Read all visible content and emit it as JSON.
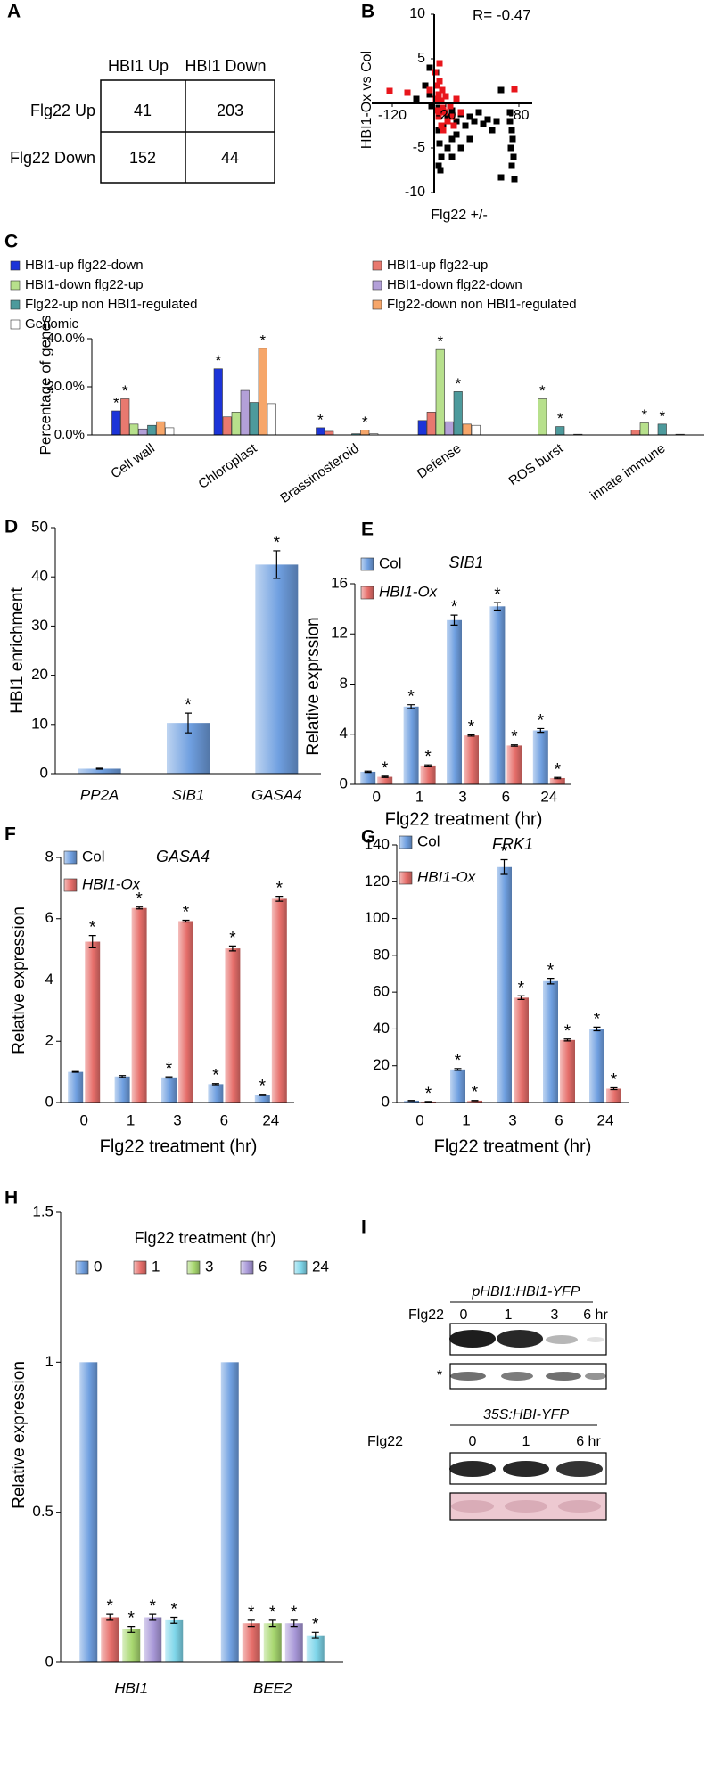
{
  "chart_data": [
    {
      "type": "table",
      "panel_label": "A",
      "columns": [
        "HBI1 Up",
        "HBI1 Down"
      ],
      "rows": [
        "Flg22 Up",
        "Flg22 Down"
      ],
      "cells": [
        [
          41,
          203
        ],
        [
          152,
          44
        ]
      ]
    },
    {
      "type": "scatter",
      "panel_label": "B",
      "annotation": "R= -0.47",
      "x_label": "Flg22 +/-",
      "y_label": "HBI1-Ox vs Col",
      "xlim": [
        -7,
        11
      ],
      "ylim": [
        -10,
        10
      ],
      "xticks": [
        {
          "value": -4.7,
          "label": "-120"
        },
        {
          "value": 1.3,
          "label": "-20"
        },
        {
          "value": 9.5,
          "label": "-80"
        }
      ],
      "yticks": [
        10,
        5,
        -5,
        -10
      ],
      "series": [
        {
          "color": "#000000",
          "x": [
            0.5,
            1,
            1.5,
            2,
            2.5,
            3,
            3.5,
            4,
            4.5,
            5,
            5.5,
            6,
            6.5,
            7,
            8.5,
            8.5,
            8.7,
            8.8,
            8.6,
            8.9,
            8.7,
            0.5,
            0.6,
            0.8,
            0.5,
            0.7,
            1.5,
            2,
            2.5,
            3,
            1,
            -0.5,
            -1,
            -2,
            7.5,
            9,
            7.5,
            4,
            2,
            -0.3,
            0.3,
            0.2,
            -0.5
          ],
          "y": [
            -0.5,
            -1,
            -1.5,
            -0.8,
            -2,
            -1.2,
            -2.5,
            -1.5,
            -2,
            -1,
            -2.3,
            -1.8,
            -3,
            -2,
            -1,
            -2,
            -3,
            -4,
            -5,
            -6,
            -7,
            -3,
            -4.5,
            -6,
            -7,
            -7.5,
            -5,
            -4,
            -3.5,
            -5,
            -2.5,
            1,
            2,
            0.5,
            1.5,
            -8.5,
            -8.3,
            -4,
            -6,
            -0.3,
            2,
            3.5,
            4
          ]
        },
        {
          "color": "#e8151b",
          "x": [
            0.2,
            0.5,
            0.8,
            1,
            1.2,
            0.5,
            1.5,
            0.8,
            1,
            2,
            0.3,
            0.6,
            0.1,
            0.6,
            -0.5,
            -3,
            -5,
            2.5,
            3,
            9,
            1.8,
            0.9,
            0.4,
            1.3,
            2.2
          ],
          "y": [
            0.5,
            1,
            0.3,
            -0.5,
            -1,
            -1.5,
            -2,
            -2.5,
            -3,
            -1.5,
            2,
            2.5,
            3.5,
            4.5,
            1.5,
            1.2,
            1.4,
            0.5,
            -1,
            1.6,
            -0.3,
            1.5,
            -0.8,
            0.8,
            -2.5
          ]
        }
      ]
    },
    {
      "type": "grouped_bar",
      "panel_label": "C",
      "y_label": "Percentage of genes",
      "annotation_text": "*",
      "categories": [
        "Cell wall",
        "Chloroplast",
        "Brassinosteroid",
        "Defense",
        "ROS burst",
        "innate immune"
      ],
      "ylim": [
        0,
        40
      ],
      "yticks": [
        {
          "value": 0,
          "label": "0.0%"
        },
        {
          "value": 20,
          "label": "20.0%"
        },
        {
          "value": 40,
          "label": "40.0%"
        }
      ],
      "series": [
        {
          "name": "HBI1-up flg22-down",
          "color": "#1c34d8",
          "values": [
            10,
            27.5,
            3,
            6,
            0,
            0
          ],
          "significant": [
            true,
            true,
            true,
            false,
            false,
            false
          ]
        },
        {
          "name": "HBI1-up flg22-up",
          "color": "#e8796f",
          "values": [
            15,
            7.5,
            1.5,
            9.5,
            0,
            2
          ],
          "significant": [
            true,
            false,
            false,
            false,
            false,
            false
          ]
        },
        {
          "name": "HBI1-down flg22-up",
          "color": "#b7e08c",
          "values": [
            4.5,
            9.5,
            0,
            35.5,
            15,
            5
          ],
          "significant": [
            false,
            false,
            false,
            true,
            true,
            true
          ]
        },
        {
          "name": "HBI1-down flg22-down",
          "color": "#b3a0d8",
          "values": [
            2.5,
            18.5,
            0,
            5.5,
            0,
            0
          ],
          "significant": [
            false,
            false,
            false,
            false,
            false,
            false
          ]
        },
        {
          "name": "Flg22-up non HBI1-regulated",
          "color": "#4d9a9c",
          "values": [
            4,
            13.5,
            0.5,
            18,
            3.5,
            4.5
          ],
          "significant": [
            false,
            false,
            false,
            true,
            true,
            true
          ]
        },
        {
          "name": "Flg22-down non HBI1-regulated",
          "color": "#f6a66a",
          "values": [
            5.5,
            36,
            2,
            4.5,
            0,
            0
          ],
          "significant": [
            false,
            true,
            true,
            false,
            false,
            false
          ]
        },
        {
          "name": "Genomic",
          "color": "#ffffff",
          "values": [
            3,
            13,
            0.5,
            4,
            0.3,
            0.3
          ],
          "significant": [
            false,
            false,
            false,
            false,
            false,
            false
          ]
        }
      ]
    },
    {
      "type": "grouped_bar",
      "panel_label": "D",
      "y_label": "HBI1 enrichment",
      "annotation_text": "*",
      "categories": [
        "PP2A",
        "SIB1",
        "GASA4"
      ],
      "ylim": [
        0,
        50
      ],
      "yticks": [
        0,
        10,
        20,
        30,
        40,
        50
      ],
      "series": [
        {
          "color": "#6f9fe0",
          "values": [
            1,
            10.3,
            42.5
          ],
          "errors": [
            0.1,
            2,
            2.8
          ],
          "significant": [
            false,
            true,
            true
          ]
        }
      ]
    },
    {
      "type": "grouped_bar",
      "panel_label": "E",
      "title": "SIB1",
      "y_label": "Relative exprssion",
      "x_label": "Flg22 treatment (hr)",
      "annotation_text": "*",
      "categories": [
        "0",
        "1",
        "3",
        "6",
        "24"
      ],
      "ylim": [
        0,
        16
      ],
      "yticks": [
        0,
        4,
        8,
        12,
        16
      ],
      "series": [
        {
          "name": "Col",
          "color": "#6f9fe0",
          "values": [
            1,
            6.2,
            13.1,
            14.2,
            4.3
          ],
          "errors": [
            0.05,
            0.15,
            0.4,
            0.3,
            0.15
          ],
          "significant": [
            false,
            true,
            true,
            true,
            true
          ]
        },
        {
          "name": "HBI1-Ox",
          "color": "#e66e6a",
          "values": [
            0.6,
            1.5,
            3.9,
            3.1,
            0.5
          ],
          "errors": [
            0.05,
            0.05,
            0.05,
            0.05,
            0.05
          ],
          "significant": [
            true,
            true,
            true,
            true,
            true
          ]
        }
      ]
    },
    {
      "type": "grouped_bar",
      "panel_label": "F",
      "title": "GASA4",
      "y_label": "Relative expression",
      "x_label": "Flg22 treatment (hr)",
      "annotation_text": "*",
      "categories": [
        "0",
        "1",
        "3",
        "6",
        "24"
      ],
      "ylim": [
        0,
        8
      ],
      "yticks": [
        0,
        2,
        4,
        6,
        8
      ],
      "series": [
        {
          "name": "Col",
          "color": "#6f9fe0",
          "values": [
            1,
            0.85,
            0.82,
            0.6,
            0.25
          ],
          "errors": [
            0.01,
            0.03,
            0.02,
            0.02,
            0.02
          ],
          "significant": [
            false,
            false,
            true,
            true,
            true
          ]
        },
        {
          "name": "HBI1-Ox",
          "color": "#e66e6a",
          "values": [
            5.25,
            6.35,
            5.92,
            5.03,
            6.65
          ],
          "errors": [
            0.2,
            0.03,
            0.03,
            0.08,
            0.08
          ],
          "significant": [
            true,
            true,
            true,
            true,
            true
          ]
        }
      ]
    },
    {
      "type": "grouped_bar",
      "panel_label": "G",
      "title": "FRK1",
      "x_label": "Flg22 treatment (hr)",
      "annotation_text": "*",
      "categories": [
        "0",
        "1",
        "3",
        "6",
        "24"
      ],
      "ylim": [
        0,
        140
      ],
      "yticks": [
        0,
        20,
        40,
        60,
        80,
        100,
        120,
        140
      ],
      "series": [
        {
          "name": "Col",
          "color": "#6f9fe0",
          "values": [
            1,
            18,
            128,
            66,
            40
          ],
          "errors": [
            0.1,
            0.5,
            4,
            1.5,
            1
          ],
          "significant": [
            false,
            true,
            true,
            true,
            true
          ]
        },
        {
          "name": "HBI1-Ox",
          "color": "#e66e6a",
          "values": [
            0.5,
            1,
            57,
            34,
            7.5
          ],
          "errors": [
            0.05,
            0.1,
            1,
            0.5,
            0.5
          ],
          "significant": [
            true,
            true,
            true,
            true,
            true
          ]
        }
      ]
    },
    {
      "type": "grouped_bar",
      "panel_label": "H",
      "title": "Flg22 treatment (hr)",
      "y_label": "Relative expression",
      "annotation_text": "*",
      "categories": [
        "HBI1",
        "BEE2"
      ],
      "ylim": [
        0,
        1.5
      ],
      "yticks": [
        0,
        0.5,
        1,
        1.5
      ],
      "series": [
        {
          "name": "0",
          "color": "#6f9fe0",
          "values": [
            1,
            1
          ],
          "significant": [
            false,
            false
          ]
        },
        {
          "name": "1",
          "color": "#e66e6a",
          "values": [
            0.15,
            0.13
          ],
          "errors": [
            0.01,
            0.01
          ],
          "significant": [
            true,
            true
          ]
        },
        {
          "name": "3",
          "color": "#a8d870",
          "values": [
            0.11,
            0.13
          ],
          "errors": [
            0.01,
            0.01
          ],
          "significant": [
            true,
            true
          ]
        },
        {
          "name": "6",
          "color": "#a898d8",
          "values": [
            0.15,
            0.13
          ],
          "errors": [
            0.01,
            0.01
          ],
          "significant": [
            true,
            true
          ]
        },
        {
          "name": "24",
          "color": "#7fd6ea",
          "values": [
            0.14,
            0.09
          ],
          "errors": [
            0.01,
            0.01
          ],
          "significant": [
            true,
            true
          ]
        }
      ]
    },
    {
      "type": "blot",
      "panel_label": "I",
      "blots": [
        {
          "title": "pHBI1:HBI1-YFP",
          "lane_label": "Flg22",
          "lanes": [
            "0",
            "1",
            "3",
            "6 hr"
          ],
          "marker": "*"
        },
        {
          "title": "35S:HBI-YFP",
          "lane_label": "Flg22",
          "lanes": [
            "0",
            "1",
            "6 hr"
          ]
        }
      ]
    }
  ]
}
